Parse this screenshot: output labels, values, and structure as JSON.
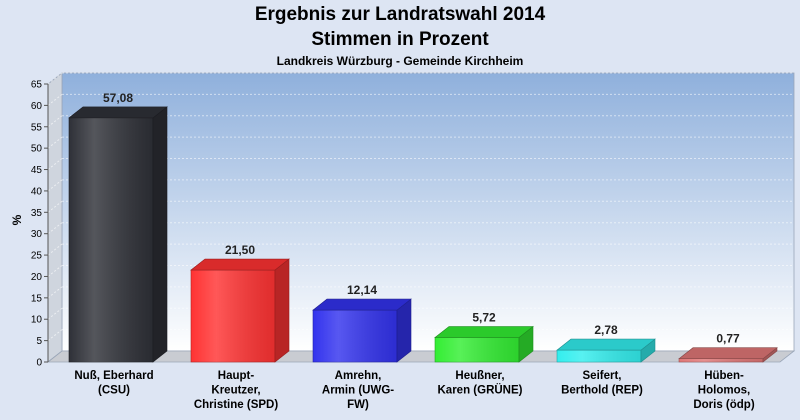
{
  "chart_data": {
    "type": "bar",
    "title": "Ergebnis zur Landratswahl 2014",
    "subtitle": "Stimmen in Prozent",
    "subtitle2": "Landkreis Würzburg - Gemeinde Kirchheim",
    "ylabel": "%",
    "xlabel": "",
    "ylim": [
      0,
      65
    ],
    "ytick_step": 5,
    "grid": true,
    "categories": [
      [
        "Nuß, Eberhard",
        "(CSU)"
      ],
      [
        "Haupt-",
        "Kreutzer,",
        "Christine (SPD)"
      ],
      [
        "Amrehn,",
        "Armin (UWG-",
        "FW)"
      ],
      [
        "Heußner,",
        "Karen (GRÜNE)"
      ],
      [
        "Seifert,",
        "Berthold (REP)"
      ],
      [
        "Hüben-",
        "Holomos,",
        "Doris (ödp)"
      ]
    ],
    "values": [
      57.08,
      21.5,
      12.14,
      5.72,
      2.78,
      0.77
    ],
    "value_labels": [
      "57,08",
      "21,50",
      "12,14",
      "5,72",
      "2,78",
      "0,77"
    ],
    "colors": [
      "#2f3138",
      "#ff3333",
      "#3333ee",
      "#33ee33",
      "#33eeee",
      "#e07777"
    ]
  }
}
